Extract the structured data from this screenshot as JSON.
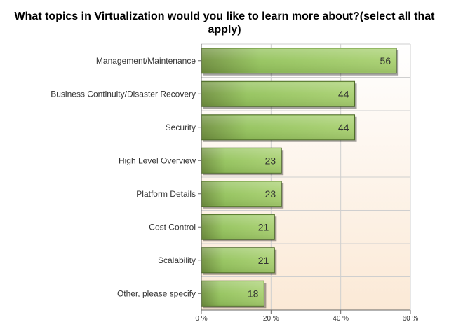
{
  "chart_data": {
    "type": "bar",
    "orientation": "horizontal",
    "title": "What topics in Virtualization would you like to learn more about?(select all that apply)",
    "xlabel": "",
    "ylabel": "",
    "categories": [
      "Management/Maintenance",
      "Business Continuity/Disaster Recovery",
      "Security",
      "High Level Overview",
      "Platform Details",
      "Cost Control",
      "Scalability",
      "Other, please specify"
    ],
    "values": [
      56,
      44,
      44,
      23,
      23,
      21,
      21,
      18
    ],
    "value_labels": [
      "56",
      "44",
      "44",
      "23",
      "23",
      "21",
      "21",
      "18"
    ],
    "xlim": [
      0,
      60
    ],
    "xticks": [
      0,
      20,
      40,
      60
    ],
    "xtick_labels": [
      "0 %",
      "20 %",
      "40 %",
      "60 %"
    ],
    "grid": true,
    "legend": "none",
    "colors": {
      "bar_light": "#a8d070",
      "bar_mid": "#94c35c",
      "bar_dark": "#6f8f3e",
      "bar_border": "#4d6a28",
      "background_top": "#ffffff",
      "background_bottom": "#fbe9d6",
      "grid": "#cfcfcf",
      "axis": "#666666"
    }
  }
}
